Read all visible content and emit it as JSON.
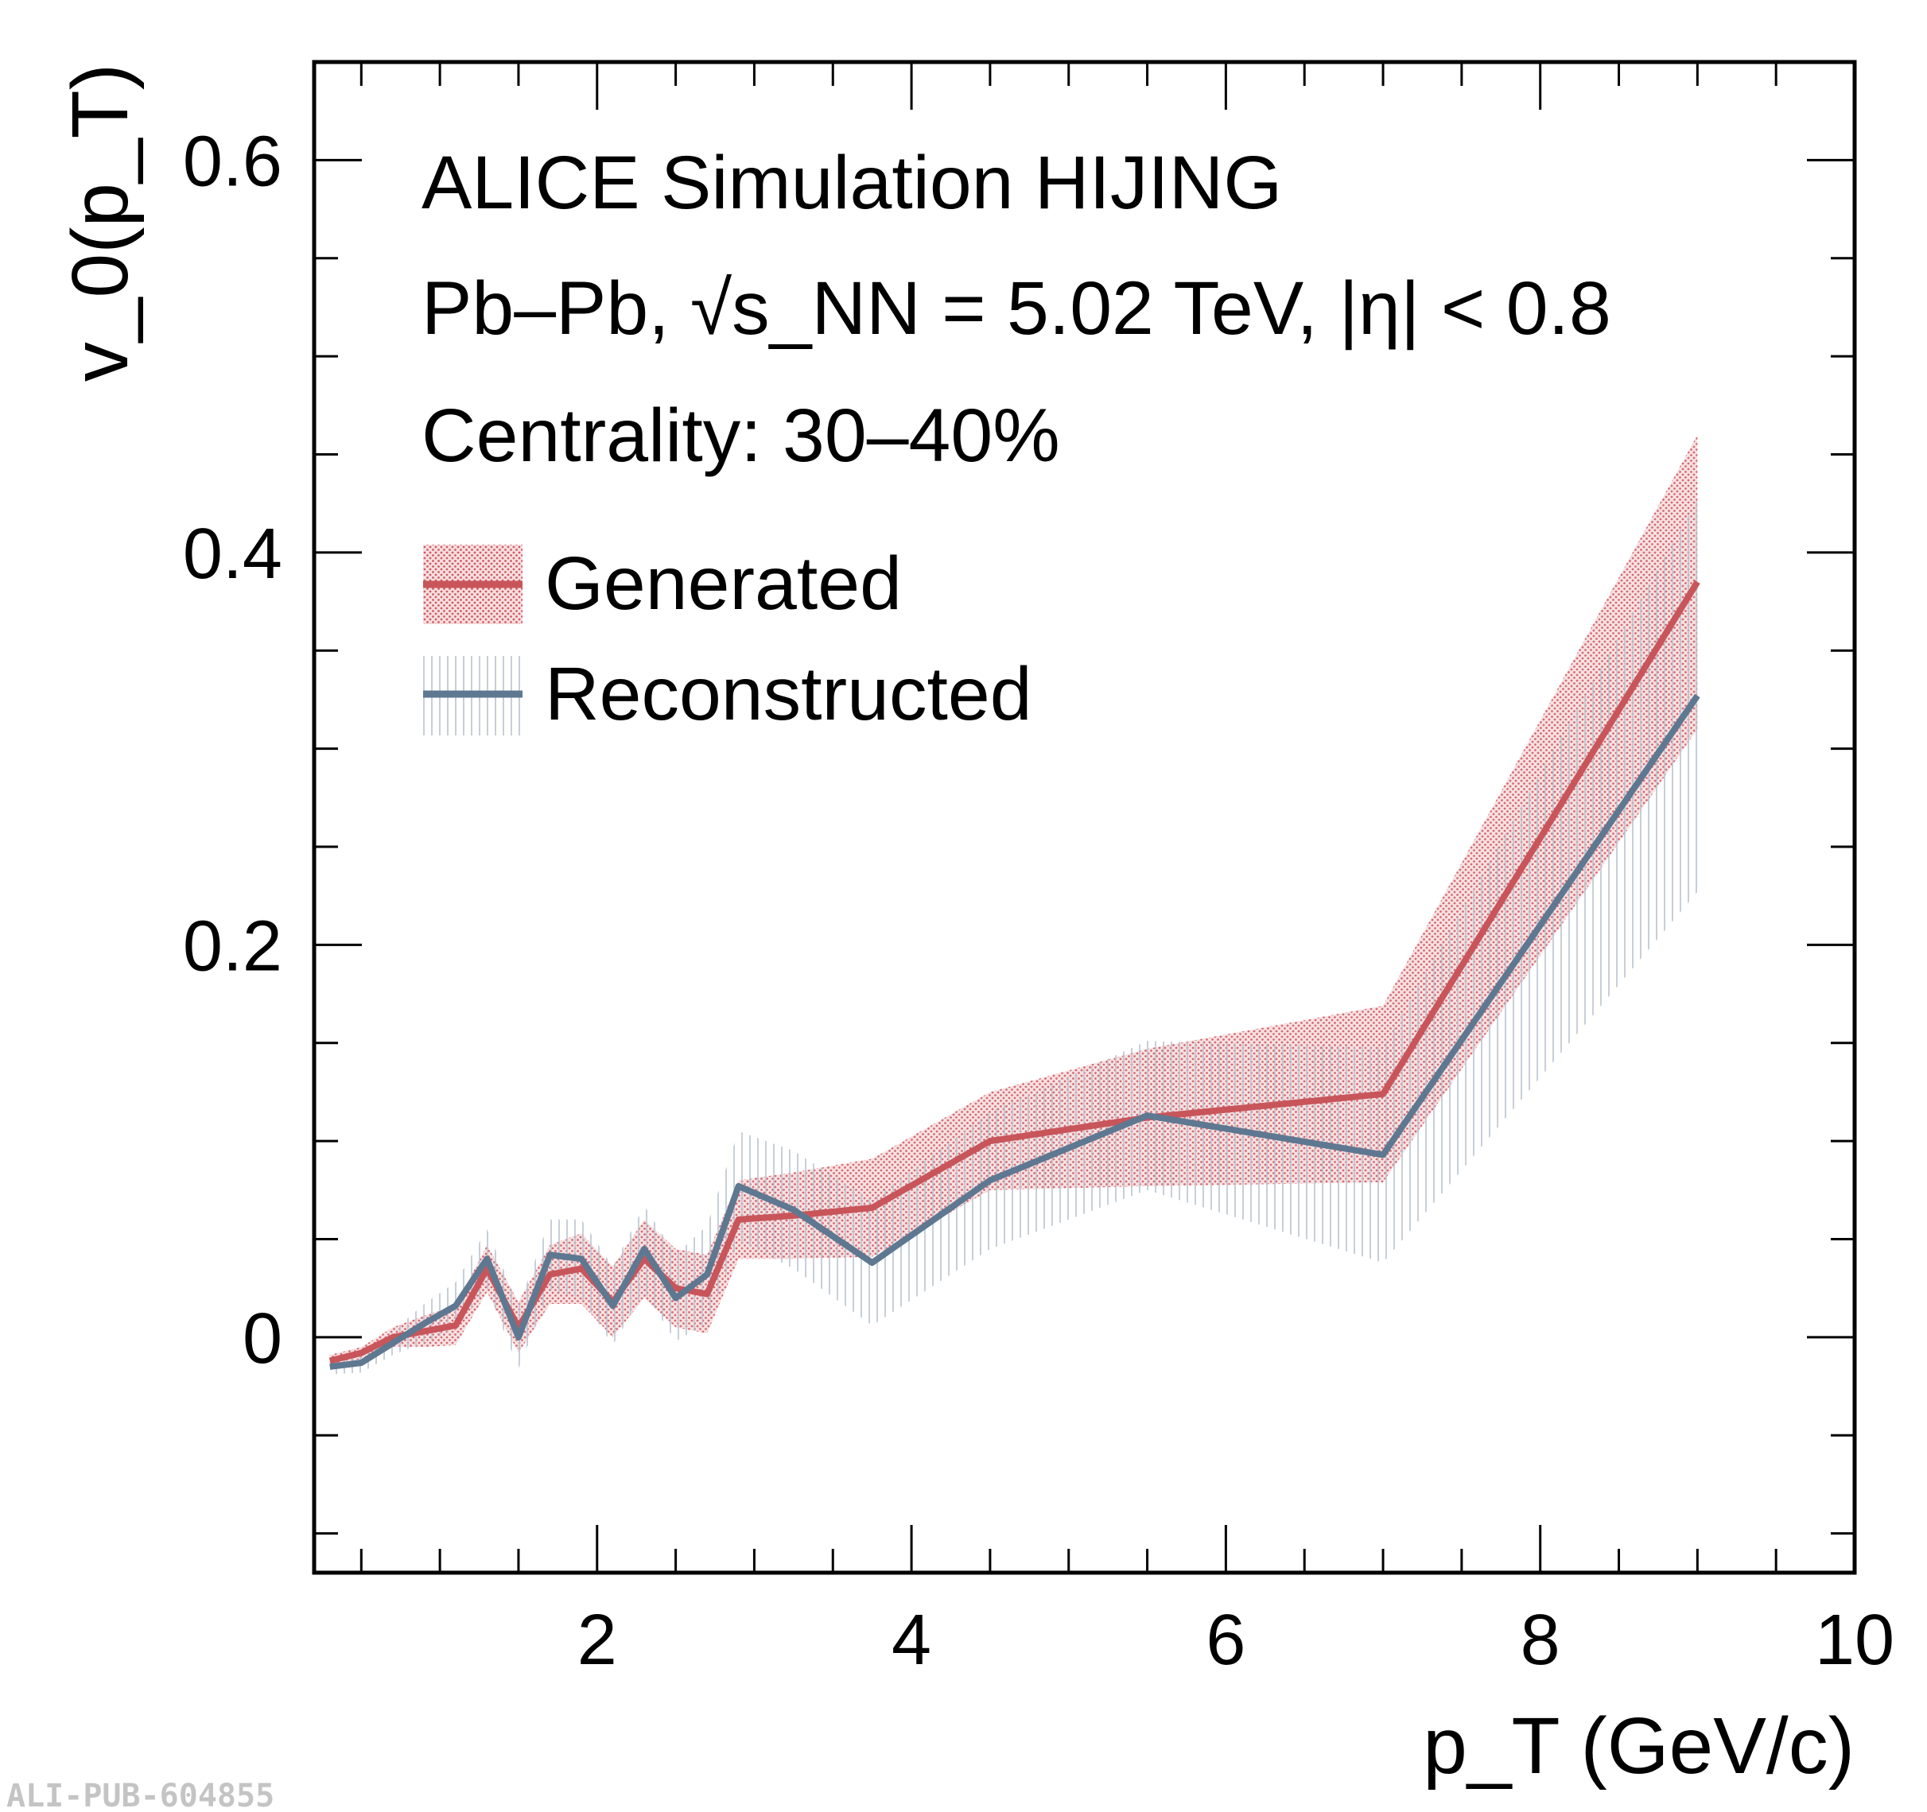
{
  "chart_data": {
    "type": "line",
    "xlabel": "p_T (GeV/c)",
    "ylabel": "v_0(p_T)",
    "xlim": [
      0.2,
      10
    ],
    "ylim": [
      -0.12,
      0.65
    ],
    "x_ticks": [
      2,
      4,
      6,
      8,
      10
    ],
    "y_ticks": [
      0,
      0.2,
      0.4,
      0.6
    ],
    "x_tick_labels": [
      "2",
      "4",
      "6",
      "8",
      "10"
    ],
    "y_tick_labels": [
      "0",
      "0.2",
      "0.4",
      "0.6"
    ],
    "annotations": [
      "ALICE Simulation HIJING",
      "Pb–Pb, √s_NN = 5.02 TeV, |η| < 0.8",
      "Centrality: 30–40%"
    ],
    "legend_position": "top-left",
    "grid": false,
    "series": [
      {
        "name": "Generated",
        "color": "#c8555a",
        "band": "dotted",
        "x": [
          0.3,
          0.5,
          0.7,
          0.9,
          1.1,
          1.3,
          1.5,
          1.7,
          1.9,
          2.1,
          2.3,
          2.5,
          2.7,
          2.9,
          3.25,
          3.75,
          4.5,
          5.5,
          7.0,
          9.0
        ],
        "y": [
          -0.012,
          -0.008,
          0.0,
          0.003,
          0.006,
          0.035,
          0.005,
          0.032,
          0.035,
          0.018,
          0.04,
          0.025,
          0.022,
          0.06,
          0.062,
          0.066,
          0.1,
          0.112,
          0.124,
          0.385
        ],
        "err": [
          0.003,
          0.003,
          0.005,
          0.008,
          0.01,
          0.012,
          0.013,
          0.015,
          0.018,
          0.018,
          0.02,
          0.02,
          0.02,
          0.02,
          0.022,
          0.025,
          0.025,
          0.035,
          0.045,
          0.075
        ]
      },
      {
        "name": "Reconstructed",
        "color": "#5f7891",
        "band": "hatched",
        "x": [
          0.3,
          0.5,
          0.7,
          0.9,
          1.1,
          1.3,
          1.5,
          1.7,
          1.9,
          2.1,
          2.3,
          2.5,
          2.7,
          2.9,
          3.25,
          3.75,
          4.5,
          5.5,
          7.0,
          9.0
        ],
        "y": [
          -0.015,
          -0.013,
          -0.003,
          0.007,
          0.016,
          0.04,
          0.0,
          0.042,
          0.04,
          0.016,
          0.045,
          0.02,
          0.032,
          0.077,
          0.065,
          0.038,
          0.08,
          0.113,
          0.093,
          0.327
        ],
        "err": [
          0.004,
          0.005,
          0.006,
          0.01,
          0.012,
          0.015,
          0.016,
          0.018,
          0.02,
          0.02,
          0.022,
          0.022,
          0.025,
          0.028,
          0.03,
          0.032,
          0.035,
          0.038,
          0.055,
          0.1
        ]
      }
    ]
  },
  "watermark": "ALI-PUB-604855"
}
